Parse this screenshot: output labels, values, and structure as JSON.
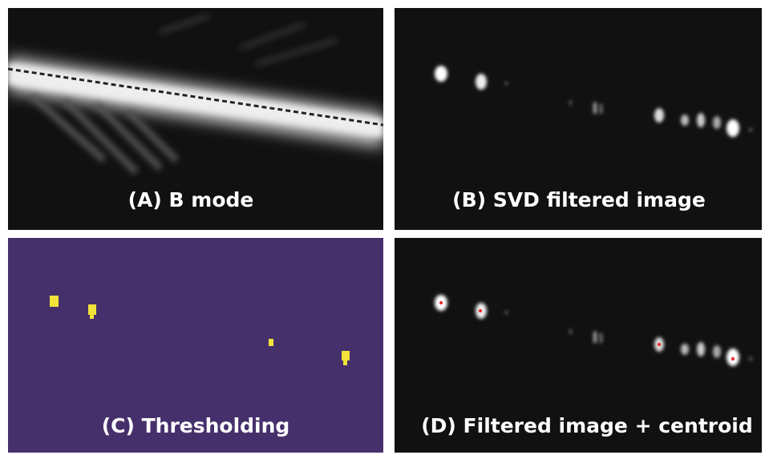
{
  "panels": [
    {
      "caption": "(A) B mode"
    },
    {
      "caption": "(B) SVD filtered image"
    },
    {
      "caption": "(C) Thresholding"
    },
    {
      "caption": "(D) Filtered image + centroid"
    }
  ]
}
